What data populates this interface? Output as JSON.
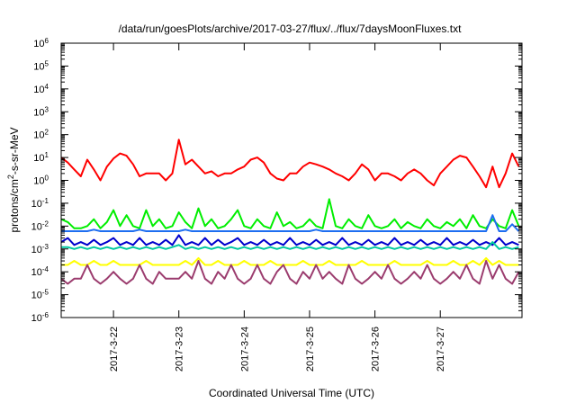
{
  "chart_data": {
    "type": "line",
    "title": "/data/run/goesPlots/archive/2017-03-27/flux/../flux/7daysMoonFluxes.txt",
    "xlabel": "Coordinated Universal Time (UTC)",
    "ylabel_parts": [
      "protons/cm",
      "2",
      "-s-sr-MeV"
    ],
    "x_unit": "days since 2017-03-21 00:00 UTC",
    "xlim": [
      0.2,
      7.25
    ],
    "x_tick_values": [
      1,
      2,
      3,
      4,
      5,
      6
    ],
    "x_tick_labels": [
      "2017-3-22",
      "2017-3-23",
      "2017-3-24",
      "2017-3-25",
      "2017-3-26",
      "2017-3-27"
    ],
    "y_scale": "log",
    "ylim": [
      1e-06,
      1000000.0
    ],
    "y_ticks": [
      {
        "base": "10",
        "exp": "-6"
      },
      {
        "base": "10",
        "exp": "-5"
      },
      {
        "base": "10",
        "exp": "-4"
      },
      {
        "base": "10",
        "exp": "-3"
      },
      {
        "base": "10",
        "exp": "-2"
      },
      {
        "base": "10",
        "exp": "-1"
      },
      {
        "base": "10",
        "exp": "0"
      },
      {
        "base": "10",
        "exp": "1"
      },
      {
        "base": "10",
        "exp": "2"
      },
      {
        "base": "10",
        "exp": "3"
      },
      {
        "base": "10",
        "exp": "4"
      },
      {
        "base": "10",
        "exp": "5"
      },
      {
        "base": "10",
        "exp": "6"
      }
    ],
    "grid": false,
    "x": [
      0.2,
      0.3,
      0.4,
      0.5,
      0.6,
      0.7,
      0.8,
      0.9,
      1.0,
      1.1,
      1.2,
      1.3,
      1.4,
      1.5,
      1.6,
      1.7,
      1.8,
      1.9,
      2.0,
      2.1,
      2.2,
      2.3,
      2.4,
      2.5,
      2.6,
      2.7,
      2.8,
      2.9,
      3.0,
      3.1,
      3.2,
      3.3,
      3.4,
      3.5,
      3.6,
      3.7,
      3.8,
      3.9,
      4.0,
      4.1,
      4.2,
      4.3,
      4.4,
      4.5,
      4.6,
      4.7,
      4.8,
      4.9,
      5.0,
      5.1,
      5.2,
      5.3,
      5.4,
      5.5,
      5.6,
      5.7,
      5.8,
      5.9,
      6.0,
      6.1,
      6.2,
      6.3,
      6.4,
      6.5,
      6.6,
      6.7,
      6.8,
      6.9,
      7.0,
      7.1,
      7.2
    ],
    "series": [
      {
        "color": "#ff0000",
        "values": [
          10,
          6,
          3,
          1.5,
          8,
          3,
          1,
          4,
          9,
          15,
          12,
          5,
          1.5,
          2,
          2,
          2,
          1,
          2,
          60,
          5,
          8,
          4,
          2,
          2.5,
          1.5,
          2,
          2,
          3,
          4,
          8,
          10,
          6,
          2,
          1.2,
          1,
          2,
          2,
          4,
          6,
          5,
          4,
          3,
          2,
          1.5,
          1,
          2,
          5,
          3,
          1,
          2,
          2,
          1.5,
          1,
          2,
          3,
          2,
          1,
          0.6,
          2,
          4,
          8,
          12,
          10,
          4,
          1.5,
          0.5,
          4,
          0.5,
          2,
          15,
          4
        ]
      },
      {
        "color": "#00ee00",
        "values": [
          0.02,
          0.015,
          0.008,
          0.008,
          0.01,
          0.02,
          0.008,
          0.015,
          0.05,
          0.01,
          0.03,
          0.01,
          0.008,
          0.05,
          0.01,
          0.02,
          0.008,
          0.01,
          0.04,
          0.015,
          0.008,
          0.06,
          0.01,
          0.02,
          0.008,
          0.01,
          0.02,
          0.05,
          0.01,
          0.008,
          0.02,
          0.01,
          0.008,
          0.04,
          0.01,
          0.015,
          0.008,
          0.01,
          0.02,
          0.01,
          0.008,
          0.15,
          0.01,
          0.008,
          0.02,
          0.01,
          0.008,
          0.03,
          0.01,
          0.008,
          0.01,
          0.02,
          0.008,
          0.015,
          0.01,
          0.008,
          0.02,
          0.01,
          0.008,
          0.015,
          0.01,
          0.02,
          0.008,
          0.03,
          0.01,
          0.008,
          0.02,
          0.01,
          0.008,
          0.05,
          0.01
        ]
      },
      {
        "color": "#1e6ef0",
        "values": [
          0.006,
          0.006,
          0.006,
          0.006,
          0.006,
          0.007,
          0.006,
          0.006,
          0.006,
          0.006,
          0.006,
          0.006,
          0.007,
          0.006,
          0.006,
          0.006,
          0.006,
          0.006,
          0.006,
          0.007,
          0.006,
          0.006,
          0.006,
          0.006,
          0.006,
          0.006,
          0.006,
          0.006,
          0.006,
          0.006,
          0.006,
          0.006,
          0.006,
          0.006,
          0.006,
          0.006,
          0.006,
          0.006,
          0.006,
          0.007,
          0.006,
          0.006,
          0.006,
          0.006,
          0.006,
          0.006,
          0.006,
          0.006,
          0.006,
          0.006,
          0.006,
          0.006,
          0.006,
          0.006,
          0.006,
          0.006,
          0.006,
          0.006,
          0.006,
          0.006,
          0.006,
          0.006,
          0.006,
          0.006,
          0.006,
          0.006,
          0.03,
          0.006,
          0.006,
          0.012,
          0.006
        ]
      },
      {
        "color": "#0000cc",
        "values": [
          0.002,
          0.003,
          0.0015,
          0.002,
          0.0015,
          0.0025,
          0.0015,
          0.002,
          0.003,
          0.0015,
          0.002,
          0.0015,
          0.003,
          0.0015,
          0.002,
          0.0015,
          0.0025,
          0.0015,
          0.004,
          0.0015,
          0.002,
          0.0015,
          0.003,
          0.0015,
          0.0025,
          0.0015,
          0.002,
          0.003,
          0.0015,
          0.002,
          0.0015,
          0.0025,
          0.0015,
          0.002,
          0.0015,
          0.003,
          0.0015,
          0.002,
          0.0015,
          0.0025,
          0.0015,
          0.002,
          0.0015,
          0.003,
          0.0015,
          0.002,
          0.0015,
          0.0025,
          0.0015,
          0.002,
          0.0015,
          0.003,
          0.0015,
          0.002,
          0.0015,
          0.0025,
          0.0015,
          0.002,
          0.0015,
          0.003,
          0.0015,
          0.002,
          0.0015,
          0.0025,
          0.0015,
          0.002,
          0.0015,
          0.003,
          0.0015,
          0.002,
          0.0015
        ]
      },
      {
        "color": "#00c8a0",
        "values": [
          0.0012,
          0.0012,
          0.001,
          0.0012,
          0.001,
          0.0012,
          0.001,
          0.0012,
          0.001,
          0.0012,
          0.001,
          0.0012,
          0.001,
          0.0012,
          0.001,
          0.0012,
          0.001,
          0.0012,
          0.0015,
          0.001,
          0.0012,
          0.001,
          0.0012,
          0.001,
          0.0012,
          0.001,
          0.0012,
          0.001,
          0.0012,
          0.001,
          0.0012,
          0.001,
          0.0012,
          0.001,
          0.0012,
          0.001,
          0.0012,
          0.001,
          0.0012,
          0.001,
          0.0012,
          0.001,
          0.0012,
          0.001,
          0.0012,
          0.001,
          0.0012,
          0.001,
          0.0012,
          0.001,
          0.0012,
          0.001,
          0.0012,
          0.001,
          0.0012,
          0.001,
          0.0012,
          0.001,
          0.0012,
          0.001,
          0.0012,
          0.001,
          0.0012,
          0.001,
          0.0012,
          0.001,
          0.002,
          0.001,
          0.0012,
          0.001,
          0.0012
        ]
      },
      {
        "color": "#ffff00",
        "values": [
          0.0002,
          0.0002,
          0.0003,
          0.0002,
          0.0002,
          0.0003,
          0.0002,
          0.0002,
          0.0003,
          0.0002,
          0.0002,
          0.0002,
          0.0002,
          0.0003,
          0.0002,
          0.0002,
          0.0002,
          0.0002,
          0.0002,
          0.0003,
          0.0002,
          0.0004,
          0.0002,
          0.0002,
          0.0003,
          0.0002,
          0.0002,
          0.0002,
          0.0003,
          0.0002,
          0.0002,
          0.0002,
          0.0003,
          0.0002,
          0.0002,
          0.0002,
          0.0002,
          0.0003,
          0.0002,
          0.0002,
          0.0002,
          0.0003,
          0.0002,
          0.0002,
          0.0002,
          0.0002,
          0.0003,
          0.0002,
          0.0002,
          0.0002,
          0.0002,
          0.0003,
          0.0002,
          0.0002,
          0.0002,
          0.0002,
          0.0003,
          0.0002,
          0.0002,
          0.0002,
          0.0003,
          0.0002,
          0.0002,
          0.0003,
          0.0002,
          0.0004,
          0.0002,
          0.0003,
          0.0002,
          0.0002,
          0.0002
        ]
      },
      {
        "color": "#9b3c6e",
        "values": [
          5e-05,
          3e-05,
          5e-05,
          5e-05,
          0.0002,
          5e-05,
          3e-05,
          5e-05,
          0.0001,
          5e-05,
          3e-05,
          5e-05,
          0.0002,
          5e-05,
          3e-05,
          0.0001,
          5e-05,
          5e-05,
          5e-05,
          0.0001,
          5e-05,
          0.0003,
          5e-05,
          3e-05,
          0.0001,
          5e-05,
          0.0002,
          5e-05,
          3e-05,
          5e-05,
          0.0002,
          5e-05,
          3e-05,
          0.0001,
          0.0002,
          5e-05,
          3e-05,
          0.0001,
          5e-05,
          0.0002,
          5e-05,
          0.0001,
          5e-05,
          3e-05,
          0.0002,
          5e-05,
          3e-05,
          5e-05,
          0.0001,
          5e-05,
          0.0002,
          5e-05,
          3e-05,
          5e-05,
          0.0001,
          5e-05,
          0.0002,
          5e-05,
          3e-05,
          5e-05,
          0.0001,
          5e-05,
          0.0002,
          5e-05,
          3e-05,
          0.0003,
          5e-05,
          0.0002,
          5e-05,
          3e-05,
          0.0001
        ]
      }
    ]
  }
}
